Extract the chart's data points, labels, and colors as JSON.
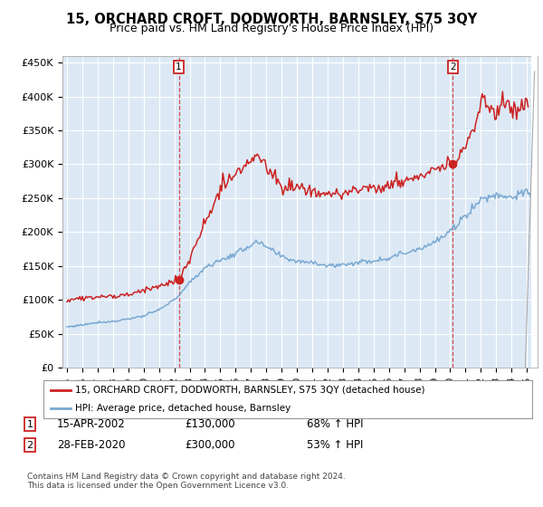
{
  "title": "15, ORCHARD CROFT, DODWORTH, BARNSLEY, S75 3QY",
  "subtitle": "Price paid vs. HM Land Registry's House Price Index (HPI)",
  "title_fontsize": 10.5,
  "subtitle_fontsize": 9,
  "ylabel_ticks": [
    "£0",
    "£50K",
    "£100K",
    "£150K",
    "£200K",
    "£250K",
    "£300K",
    "£350K",
    "£400K",
    "£450K"
  ],
  "ytick_values": [
    0,
    50000,
    100000,
    150000,
    200000,
    250000,
    300000,
    350000,
    400000,
    450000
  ],
  "ylim": [
    0,
    460000
  ],
  "xlim_start": 1994.7,
  "xlim_end": 2025.7,
  "hpi_color": "#7aa8d2",
  "price_color": "#cc2222",
  "sale1_x": 2002.29,
  "sale1_y": 130000,
  "sale2_x": 2020.17,
  "sale2_y": 300000,
  "legend1": "15, ORCHARD CROFT, DODWORTH, BARNSLEY, S75 3QY (detached house)",
  "legend2": "HPI: Average price, detached house, Barnsley",
  "note1_date": "15-APR-2002",
  "note1_price": "£130,000",
  "note1_hpi": "68% ↑ HPI",
  "note2_date": "28-FEB-2020",
  "note2_price": "£300,000",
  "note2_hpi": "53% ↑ HPI",
  "footnote": "Contains HM Land Registry data © Crown copyright and database right 2024.\nThis data is licensed under the Open Government Licence v3.0.",
  "background_color": "#ffffff",
  "plot_bg_color": "#dce9f5",
  "grid_color": "#ffffff"
}
